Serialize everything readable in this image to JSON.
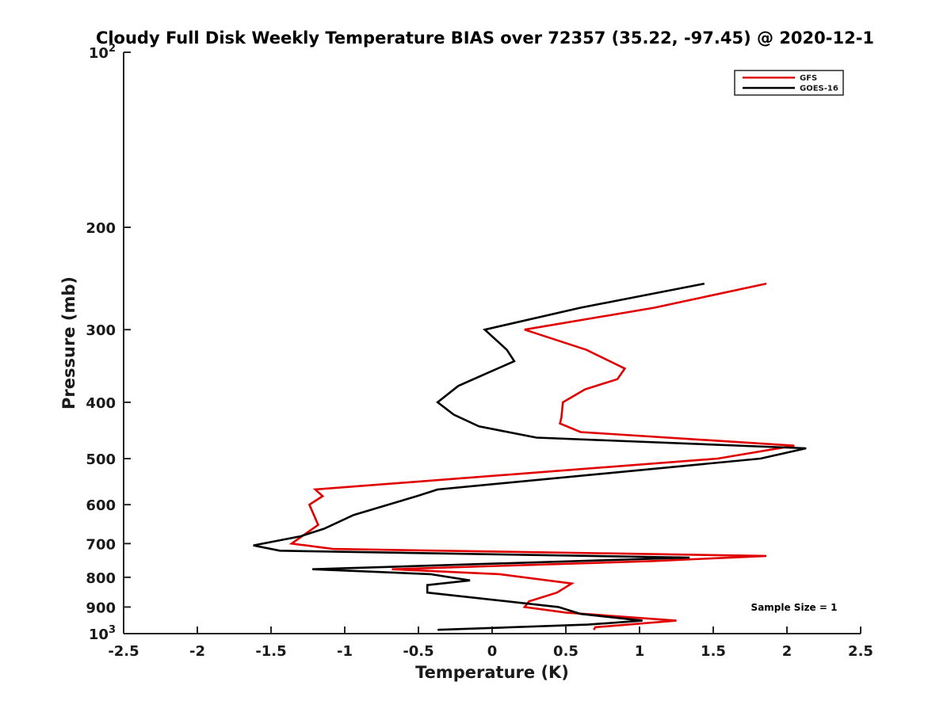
{
  "chart_data": {
    "type": "line",
    "title": "Cloudy Full Disk Weekly Temperature BIAS over 72357 (35.22, -97.45) @ 2020-12-1",
    "xlabel": "Temperature (K)",
    "ylabel": "Pressure (mb)",
    "xlim": [
      -2.5,
      2.5
    ],
    "ylim": [
      1000,
      100
    ],
    "y_scale": "log",
    "y_reversed": true,
    "grid": false,
    "legend_position": "top-right",
    "x_ticks": [
      "-2.5",
      "-2",
      "-1.5",
      "-1",
      "-0.5",
      "0",
      "0.5",
      "1",
      "1.5",
      "2",
      "2.5"
    ],
    "x_tick_values": [
      -2.5,
      -2,
      -1.5,
      -1,
      -0.5,
      0,
      0.5,
      1,
      1.5,
      2,
      2.5
    ],
    "y_ticks": [
      {
        "value": 100,
        "base": "10",
        "exp": "2"
      },
      {
        "value": 200,
        "label": "200"
      },
      {
        "value": 300,
        "label": "300"
      },
      {
        "value": 400,
        "label": "400"
      },
      {
        "value": 500,
        "label": "500"
      },
      {
        "value": 600,
        "label": "600"
      },
      {
        "value": 700,
        "label": "700"
      },
      {
        "value": 800,
        "label": "800"
      },
      {
        "value": 900,
        "label": "900"
      },
      {
        "value": 1000,
        "base": "10",
        "exp": "3"
      }
    ],
    "annotation": "Sample Size = 1",
    "series": [
      {
        "name": "GFS",
        "color": "#e00000",
        "points": [
          [
            1.86,
            250
          ],
          [
            1.1,
            275
          ],
          [
            0.22,
            300
          ],
          [
            0.64,
            325
          ],
          [
            0.9,
            350
          ],
          [
            0.85,
            365
          ],
          [
            0.63,
            380
          ],
          [
            0.48,
            400
          ],
          [
            0.47,
            425
          ],
          [
            0.46,
            435
          ],
          [
            0.6,
            450
          ],
          [
            2.05,
            475
          ],
          [
            1.53,
            500
          ],
          [
            -1.2,
            565
          ],
          [
            -1.15,
            580
          ],
          [
            -1.24,
            600
          ],
          [
            -1.18,
            650
          ],
          [
            -1.36,
            700
          ],
          [
            -1.08,
            715
          ],
          [
            1.86,
            735
          ],
          [
            1.1,
            750
          ],
          [
            -0.68,
            775
          ],
          [
            0.05,
            790
          ],
          [
            0.54,
            820
          ],
          [
            0.44,
            850
          ],
          [
            0.25,
            880
          ],
          [
            0.22,
            900
          ],
          [
            0.5,
            920
          ],
          [
            1.25,
            950
          ],
          [
            0.7,
            975
          ],
          [
            0.69,
            985
          ]
        ]
      },
      {
        "name": "GOES-16",
        "color": "#000000",
        "points": [
          [
            1.44,
            250
          ],
          [
            0.6,
            275
          ],
          [
            -0.05,
            300
          ],
          [
            0.1,
            325
          ],
          [
            0.15,
            340
          ],
          [
            -0.02,
            355
          ],
          [
            -0.23,
            375
          ],
          [
            -0.37,
            400
          ],
          [
            -0.26,
            420
          ],
          [
            -0.09,
            440
          ],
          [
            0.3,
            460
          ],
          [
            2.13,
            480
          ],
          [
            1.82,
            500
          ],
          [
            -0.37,
            565
          ],
          [
            -0.51,
            580
          ],
          [
            -0.94,
            625
          ],
          [
            -1.14,
            660
          ],
          [
            -1.3,
            680
          ],
          [
            -1.62,
            705
          ],
          [
            -1.44,
            720
          ],
          [
            1.34,
            740
          ],
          [
            -1.22,
            775
          ],
          [
            -0.42,
            790
          ],
          [
            -0.15,
            810
          ],
          [
            -0.44,
            825
          ],
          [
            -0.44,
            850
          ],
          [
            0.45,
            900
          ],
          [
            0.6,
            925
          ],
          [
            1.02,
            950
          ],
          [
            0.65,
            965
          ],
          [
            -0.37,
            985
          ]
        ]
      }
    ]
  }
}
